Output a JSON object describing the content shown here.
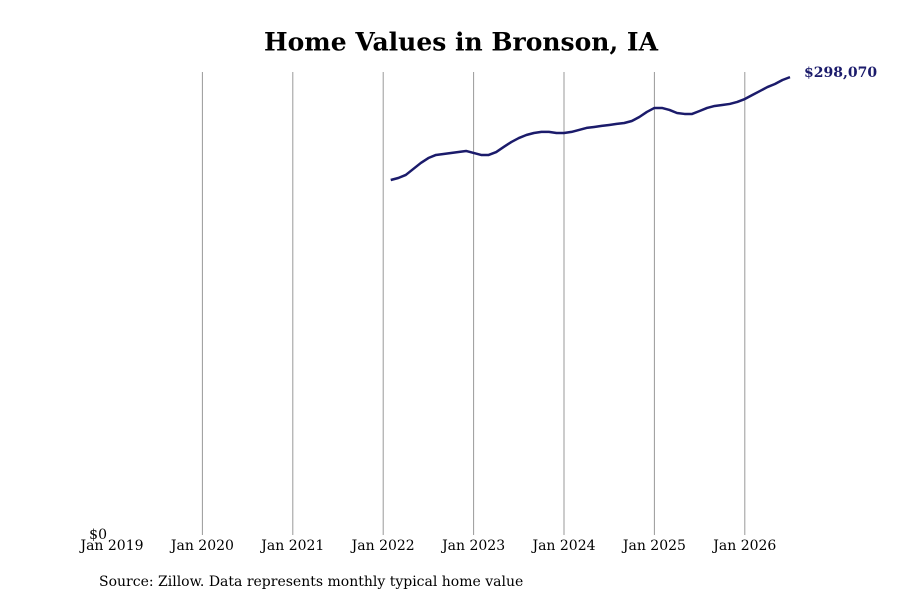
{
  "chart_data": {
    "type": "line",
    "title": "Home Values in Bronson, IA",
    "source": "Source: Zillow. Data represents monthly typical home value",
    "color": "#1b1b6b",
    "x": [
      "2022-02",
      "2022-03",
      "2022-04",
      "2022-05",
      "2022-06",
      "2022-07",
      "2022-08",
      "2022-09",
      "2022-10",
      "2022-11",
      "2022-12",
      "2023-01",
      "2023-02",
      "2023-03",
      "2023-04",
      "2023-05",
      "2023-06",
      "2023-07",
      "2023-08",
      "2023-09",
      "2023-10",
      "2023-11",
      "2023-12",
      "2024-01",
      "2024-02",
      "2024-03",
      "2024-04",
      "2024-05",
      "2024-06",
      "2024-07",
      "2024-08",
      "2024-09",
      "2024-10",
      "2024-11",
      "2024-12",
      "2025-01",
      "2025-02",
      "2025-03",
      "2025-04",
      "2025-05",
      "2025-06",
      "2025-07",
      "2025-08",
      "2025-09",
      "2025-10",
      "2025-11",
      "2025-12",
      "2026-01",
      "2026-02",
      "2026-03",
      "2026-04",
      "2026-05",
      "2026-06",
      "2026-07"
    ],
    "values": [
      231100,
      232400,
      234400,
      238300,
      242200,
      245400,
      247400,
      248000,
      248700,
      249300,
      250000,
      248700,
      247400,
      247400,
      249300,
      252600,
      255800,
      258400,
      260400,
      261700,
      262400,
      262400,
      261700,
      261700,
      262400,
      263700,
      265000,
      265600,
      266300,
      266900,
      267600,
      268200,
      269500,
      272100,
      275400,
      278000,
      278000,
      276700,
      274700,
      274100,
      274100,
      276000,
      278000,
      279300,
      279900,
      280600,
      281900,
      283800,
      286400,
      289000,
      291600,
      293600,
      296200,
      298070
    ],
    "value_labels": [
      null,
      null,
      null,
      null,
      null,
      null,
      null,
      null,
      null,
      null,
      null,
      null,
      null,
      null,
      null,
      null,
      null,
      null,
      null,
      null,
      null,
      null,
      null,
      null,
      null,
      null,
      null,
      null,
      null,
      null,
      null,
      null,
      null,
      null,
      null,
      null,
      null,
      null,
      null,
      null,
      null,
      null,
      null,
      null,
      null,
      null,
      null,
      null,
      null,
      null,
      null,
      null,
      null,
      "$298,070"
    ],
    "xlim": [
      "2019-01",
      "2026-07"
    ],
    "xticks": [
      {
        "value": "2019-01",
        "label": "Jan 2019"
      },
      {
        "value": "2020-01",
        "label": "Jan 2020"
      },
      {
        "value": "2021-01",
        "label": "Jan 2021"
      },
      {
        "value": "2022-01",
        "label": "Jan 2022"
      },
      {
        "value": "2023-01",
        "label": "Jan 2023"
      },
      {
        "value": "2024-01",
        "label": "Jan 2024"
      },
      {
        "value": "2025-01",
        "label": "Jan 2025"
      },
      {
        "value": "2026-01",
        "label": "Jan 2026"
      }
    ],
    "ylim": [
      0,
      301400
    ],
    "yticks": [
      {
        "value": 0,
        "label": "$0"
      }
    ],
    "grid": true
  }
}
